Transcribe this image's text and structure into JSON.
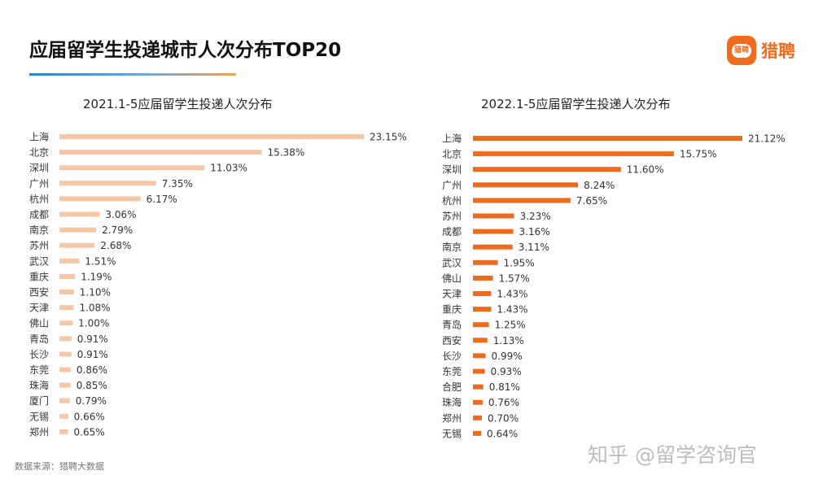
{
  "title": "应届留学生投递城市人次分布TOP20",
  "logo": {
    "icon_text": "猎聘",
    "text": "猎聘"
  },
  "source": "数据来源：猎聘大数据",
  "watermark": "知乎 @留学咨询官",
  "chart_data": [
    {
      "type": "bar",
      "orientation": "horizontal",
      "title": "2021.1-5应届留学生投递人次分布",
      "color": "#f5c7a7",
      "categories": [
        "上海",
        "北京",
        "深圳",
        "广州",
        "杭州",
        "成都",
        "南京",
        "苏州",
        "武汉",
        "重庆",
        "西安",
        "天津",
        "佛山",
        "青岛",
        "长沙",
        "东莞",
        "珠海",
        "厦门",
        "无锡",
        "郑州"
      ],
      "values": [
        23.15,
        15.38,
        11.03,
        7.35,
        6.17,
        3.06,
        2.79,
        2.68,
        1.51,
        1.19,
        1.1,
        1.08,
        1.0,
        0.91,
        0.91,
        0.86,
        0.85,
        0.79,
        0.66,
        0.65
      ],
      "labels": [
        "23.15%",
        "15.38%",
        "11.03%",
        "7.35%",
        "6.17%",
        "3.06%",
        "2.79%",
        "2.68%",
        "1.51%",
        "1.19%",
        "1.10%",
        "1.08%",
        "1.00%",
        "0.91%",
        "0.91%",
        "0.86%",
        "0.85%",
        "0.79%",
        "0.66%",
        "0.65%"
      ],
      "unit": "%"
    },
    {
      "type": "bar",
      "orientation": "horizontal",
      "title": "2022.1-5应届留学生投递人次分布",
      "color": "#ee6a1c",
      "categories": [
        "上海",
        "北京",
        "深圳",
        "广州",
        "杭州",
        "苏州",
        "成都",
        "南京",
        "武汉",
        "佛山",
        "天津",
        "重庆",
        "青岛",
        "西安",
        "长沙",
        "东莞",
        "合肥",
        "珠海",
        "郑州",
        "无锡"
      ],
      "values": [
        21.12,
        15.75,
        11.6,
        8.24,
        7.65,
        3.23,
        3.16,
        3.11,
        1.95,
        1.57,
        1.43,
        1.43,
        1.25,
        1.13,
        0.99,
        0.93,
        0.81,
        0.76,
        0.7,
        0.64
      ],
      "labels": [
        "21.12%",
        "15.75%",
        "11.60%",
        "8.24%",
        "7.65%",
        "3.23%",
        "3.16%",
        "3.11%",
        "1.95%",
        "1.57%",
        "1.43%",
        "1.43%",
        "1.25%",
        "1.13%",
        "0.99%",
        "0.93%",
        "0.81%",
        "0.76%",
        "0.70%",
        "0.64%"
      ],
      "unit": "%"
    }
  ]
}
